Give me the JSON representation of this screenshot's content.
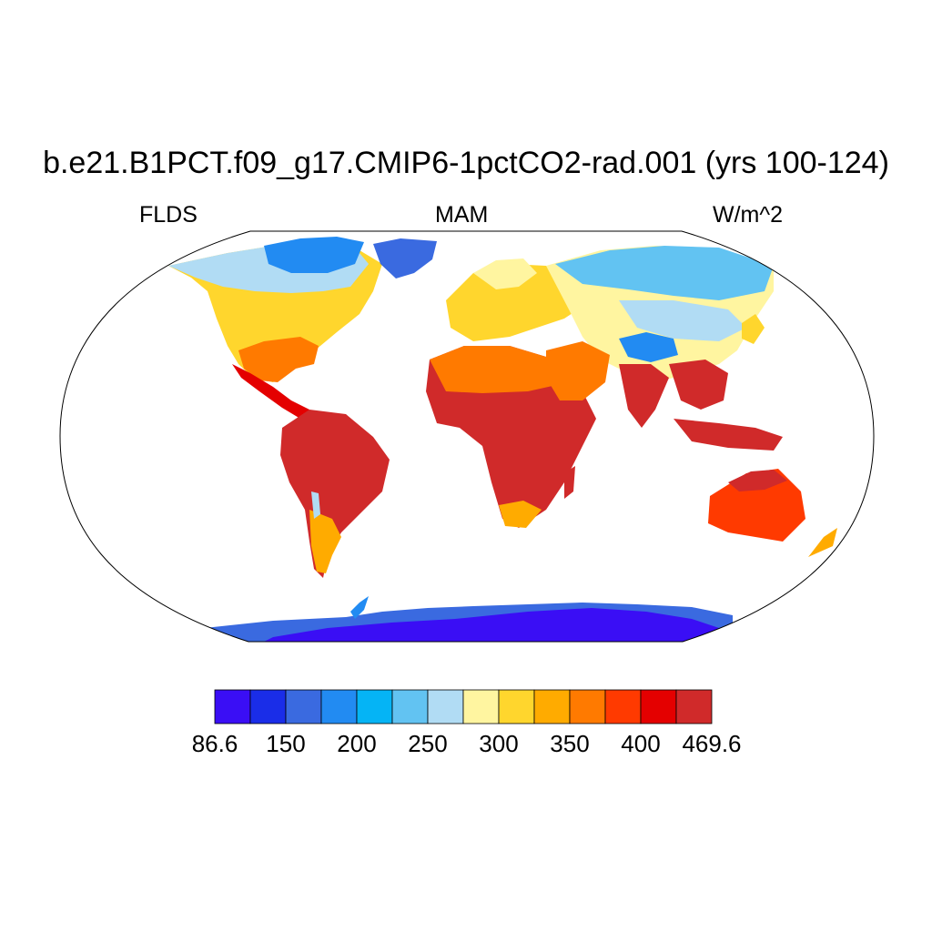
{
  "title": "b.e21.B1PCT.f09_g17.CMIP6-1pctCO2-rad.001 (yrs 100-124)",
  "left_label": "FLDS",
  "center_label": "MAM",
  "right_label": "W/m^2",
  "map": {
    "projection": "robinson",
    "field": "surface downwelling longwave flux (land only)",
    "ocean_color": "#ffffff"
  },
  "colorbar": {
    "colors": [
      "#3a0ef5",
      "#1a2de8",
      "#3a6ae0",
      "#228bf2",
      "#05b4f5",
      "#62c3f2",
      "#b1dcf4",
      "#fff5a0",
      "#ffd62d",
      "#ffab00",
      "#ff7a00",
      "#ff3a00",
      "#e40000",
      "#d02a2a"
    ],
    "tick_labels": [
      "86.6",
      "150",
      "200",
      "250",
      "300",
      "350",
      "400",
      "469.6"
    ]
  }
}
